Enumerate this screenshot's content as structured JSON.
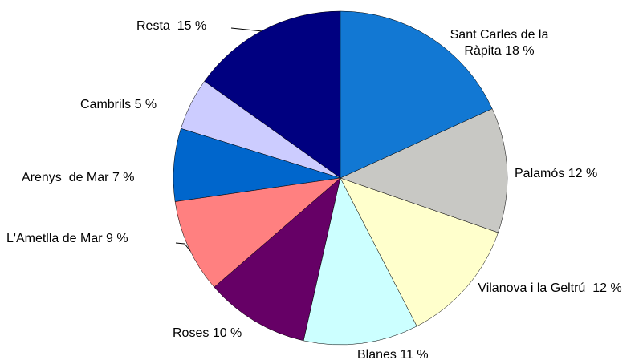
{
  "chart_data": {
    "type": "pie",
    "categories": [
      "Sant Carles de la Ràpita",
      "Palamós",
      "Vilanova i la Geltrú ",
      "Blanes",
      "Roses",
      "L'Ametlla de Mar",
      "Arenys  de Mar",
      "Cambrils",
      "Resta "
    ],
    "values": [
      18,
      12,
      12,
      11,
      10,
      9,
      7,
      5,
      15
    ],
    "value_labels": [
      "18 %",
      "12 %",
      "12 %",
      "11 %",
      "10 %",
      "9 %",
      "7 %",
      "5 %",
      "15 %"
    ],
    "colors": [
      "#1278d3",
      "#c8c8c4",
      "#ffffcc",
      "#ccffff",
      "#660066",
      "#ff8080",
      "#0066cc",
      "#ccccff",
      "#000080"
    ]
  }
}
